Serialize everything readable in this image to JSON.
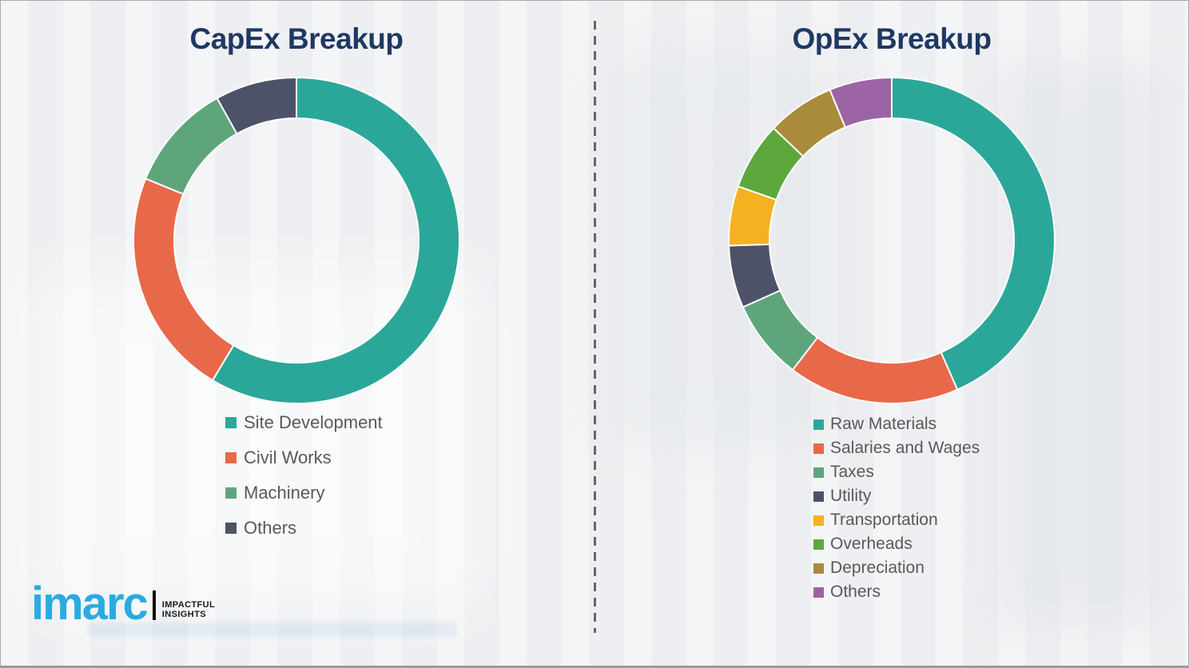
{
  "page": {
    "background_color": "#F1F2F4",
    "title_color": "#1F3864",
    "legend_text_color": "#58595B",
    "divider": {
      "orientation": "vertical",
      "style": "dashed",
      "color": "#676767"
    }
  },
  "chart_data": [
    {
      "id": "capex",
      "type": "pie",
      "subtype": "donut",
      "title": "CapEx Breakup",
      "categories": [
        "Site Development",
        "Civil Works",
        "Machinery",
        "Others"
      ],
      "values": [
        58.6,
        22.6,
        10.7,
        8.1
      ],
      "values_note": "percent shares estimated from arc angles; no numeric labels shown",
      "colors": [
        "#2BA79A",
        "#E8684A",
        "#5FA57C",
        "#4D5268"
      ],
      "slice_border_color": "#FFFFFF",
      "start_angle_deg": 0,
      "direction": "clockwise",
      "inner_radius_ratio": 0.75,
      "legend_position": "below"
    },
    {
      "id": "opex",
      "type": "pie",
      "subtype": "donut",
      "title": "OpEx Breakup",
      "categories": [
        "Raw Materials",
        "Salaries and Wages",
        "Taxes",
        "Utility",
        "Transportation",
        "Overheads",
        "Depreciation",
        "Others"
      ],
      "values": [
        43.4,
        17.0,
        7.9,
        6.2,
        5.9,
        6.7,
        6.7,
        6.2
      ],
      "values_note": "percent shares estimated from arc angles; no numeric labels shown",
      "colors": [
        "#2BA79A",
        "#E8684A",
        "#5FA57C",
        "#4D5268",
        "#F5B121",
        "#5CA83C",
        "#A98B3B",
        "#9D64A5"
      ],
      "slice_border_color": "#FFFFFF",
      "start_angle_deg": 0,
      "direction": "clockwise",
      "inner_radius_ratio": 0.75,
      "legend_position": "below"
    }
  ],
  "logo": {
    "brand": "imarc",
    "brand_color": "#29ABE2",
    "tagline_line1": "IMPACTFUL",
    "tagline_line2": "INSIGHTS"
  }
}
